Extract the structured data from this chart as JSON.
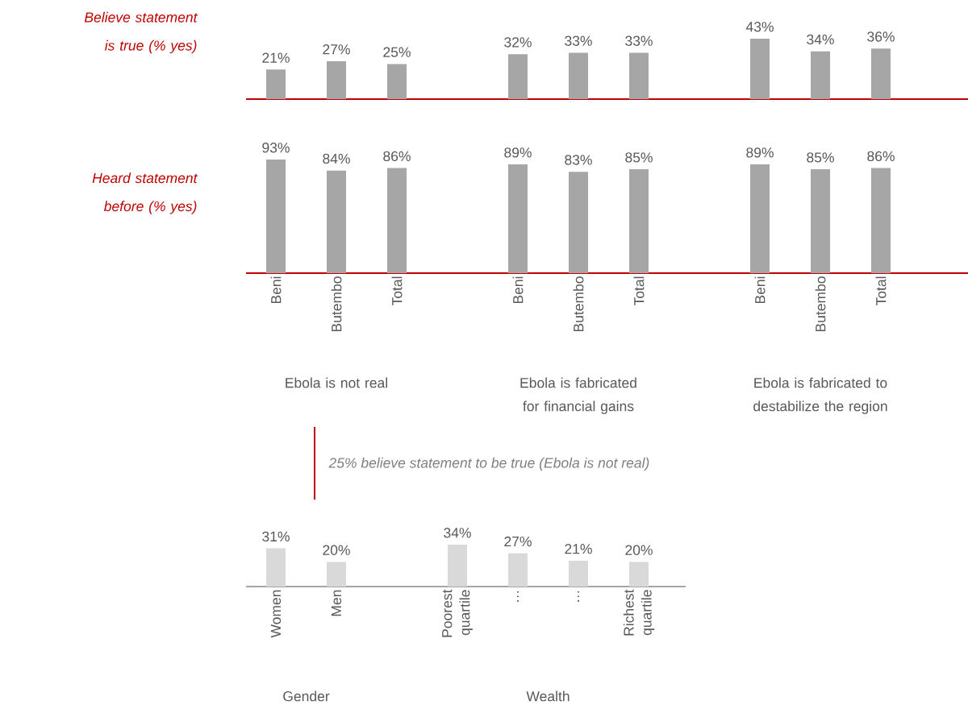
{
  "chart_data": [
    {
      "type": "bar",
      "ylabel": "Believe statement is true (% yes)",
      "categories": [
        null,
        null,
        null,
        null,
        null,
        null,
        null,
        null,
        null
      ],
      "values": [
        21,
        27,
        25,
        32,
        33,
        33,
        43,
        34,
        36
      ],
      "value_labels": [
        "21%",
        "27%",
        "25%",
        "32%",
        "33%",
        "33%",
        "43%",
        "34%",
        "36%"
      ],
      "color": "#a6a6a6",
      "tick_labels": false
    },
    {
      "type": "bar",
      "ylabel": "Heard statement before (% yes)",
      "categories": [
        "Beni",
        "Butembo",
        "Total",
        null,
        "Beni",
        "Butembo",
        "Total",
        null,
        "Beni",
        "Butembo",
        "Total"
      ],
      "values": [
        93,
        84,
        86,
        null,
        89,
        83,
        85,
        null,
        89,
        85,
        86
      ],
      "value_labels": [
        "93%",
        "84%",
        "86%",
        null,
        "89%",
        "83%",
        "85%",
        null,
        "89%",
        "85%",
        "86%"
      ],
      "color": "#a6a6a6",
      "annotations": [
        "Ebola is not real",
        "Ebola is fabricated for financial gains",
        "Ebola is fabricated to destabilize the region"
      ]
    },
    {
      "type": "bar",
      "title": "25% believe statement to be true (Ebola is not real)",
      "categories": [
        "Women",
        "Men",
        null,
        "Poorest quartile",
        "…",
        "…",
        "Richest quartile"
      ],
      "values": [
        31,
        20,
        null,
        34,
        27,
        21,
        20
      ],
      "value_labels": [
        "31%",
        "20%",
        null,
        "34%",
        "27%",
        "21%",
        "20%"
      ],
      "color": "#d9d9d9",
      "annotations": [
        "Gender",
        "Wealth"
      ]
    }
  ]
}
